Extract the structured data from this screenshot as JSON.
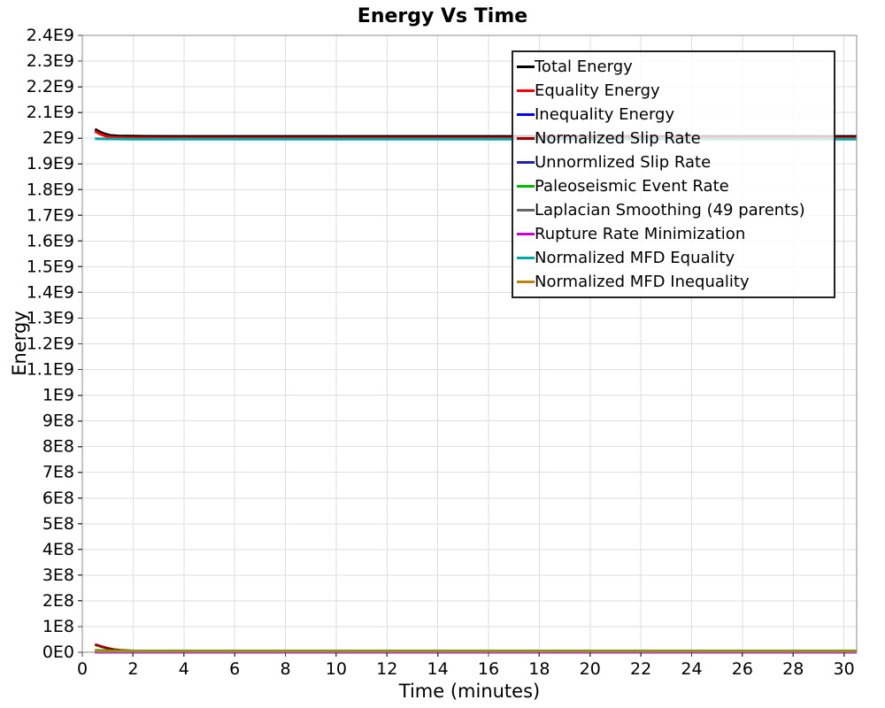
{
  "chart_data": {
    "type": "line",
    "title": "Energy Vs Time",
    "xlabel": "Time (minutes)",
    "ylabel": "Energy",
    "xlim": [
      0,
      30.5
    ],
    "ylim": [
      0,
      2400000000
    ],
    "xticks": [
      0,
      2,
      4,
      6,
      8,
      10,
      12,
      14,
      16,
      18,
      20,
      22,
      24,
      26,
      28,
      30
    ],
    "ytick_step": 100000000,
    "ytick_labels": [
      "0E0",
      "1E8",
      "2E8",
      "3E8",
      "4E8",
      "5E8",
      "6E8",
      "7E8",
      "8E8",
      "9E8",
      "1E9",
      "1.1E9",
      "1.2E9",
      "1.3E9",
      "1.4E9",
      "1.5E9",
      "1.6E9",
      "1.7E9",
      "1.8E9",
      "1.9E9",
      "2E9",
      "2.1E9",
      "2.2E9",
      "2.3E9",
      "2.4E9"
    ],
    "grid": true,
    "legend_position": "top-right-inside",
    "colors": {
      "grid": "#dedede",
      "frame": "#8a8a8a",
      "tick": "#444444",
      "legend_border": "#222222"
    },
    "series": [
      {
        "name": "Total Energy",
        "color": "#000000",
        "x": [
          0.5,
          0.7,
          0.9,
          1.1,
          1.4,
          1.8,
          2.5,
          4,
          8,
          16,
          30.5
        ],
        "y": [
          2035000000.0,
          2024000000.0,
          2016000000.0,
          2011000000.0,
          2009000000.0,
          2008000000.0,
          2007500000.0,
          2007000000.0,
          2007000000.0,
          2007000000.0,
          2007000000.0
        ]
      },
      {
        "name": "Equality Energy",
        "color": "#ff0000",
        "x": [
          0.5,
          0.7,
          0.9,
          1.1,
          1.4,
          1.8,
          2.5,
          4,
          8,
          16,
          30.5
        ],
        "y": [
          2027000000.0,
          2016000000.0,
          2009000000.0,
          2005000000.0,
          2003000000.0,
          2002000000.0,
          2001500000.0,
          2001000000.0,
          2001000000.0,
          2001000000.0,
          2001000000.0
        ]
      },
      {
        "name": "Inequality Energy",
        "color": "#0000ee",
        "x": [
          0.5,
          30.5
        ],
        "y": [
          1500000.0,
          1500000.0
        ]
      },
      {
        "name": "Normalized Slip Rate",
        "color": "#990000",
        "x": [
          0.5,
          0.75,
          1,
          1.25,
          1.5,
          2,
          2.5,
          3,
          4,
          6,
          10,
          30.5
        ],
        "y": [
          30000000.0,
          22000000.0,
          15000000.0,
          10500000.0,
          8000000.0,
          5000000.0,
          3500000.0,
          3000000.0,
          2500000.0,
          2000000.0,
          2000000.0,
          2000000.0
        ]
      },
      {
        "name": "Unnormlized Slip Rate",
        "color": "#2222aa",
        "x": [
          0.5,
          30.5
        ],
        "y": [
          1000000.0,
          1000000.0
        ]
      },
      {
        "name": "Paleoseismic Event Rate",
        "color": "#00bb00",
        "x": [
          0.5,
          1,
          2,
          30.5
        ],
        "y": [
          8000000.0,
          6000000.0,
          5000000.0,
          5000000.0
        ]
      },
      {
        "name": "Laplacian Smoothing (49 parents)",
        "color": "#666666",
        "x": [
          0.5,
          30.5
        ],
        "y": [
          2500000.0,
          2500000.0
        ]
      },
      {
        "name": "Rupture Rate Minimization",
        "color": "#cc00cc",
        "x": [
          0.5,
          30.5
        ],
        "y": [
          500000.0,
          500000.0
        ]
      },
      {
        "name": "Normalized MFD Equality",
        "color": "#00a8a8",
        "x": [
          0.5,
          1,
          2,
          30.5
        ],
        "y": [
          1998000000.0,
          1997000000.0,
          1996500000.0,
          1996500000.0
        ]
      },
      {
        "name": "Normalized MFD Inequality",
        "color": "#b8860b",
        "x": [
          0.5,
          1,
          30.5
        ],
        "y": [
          4000000.0,
          3500000.0,
          3500000.0
        ]
      }
    ]
  }
}
